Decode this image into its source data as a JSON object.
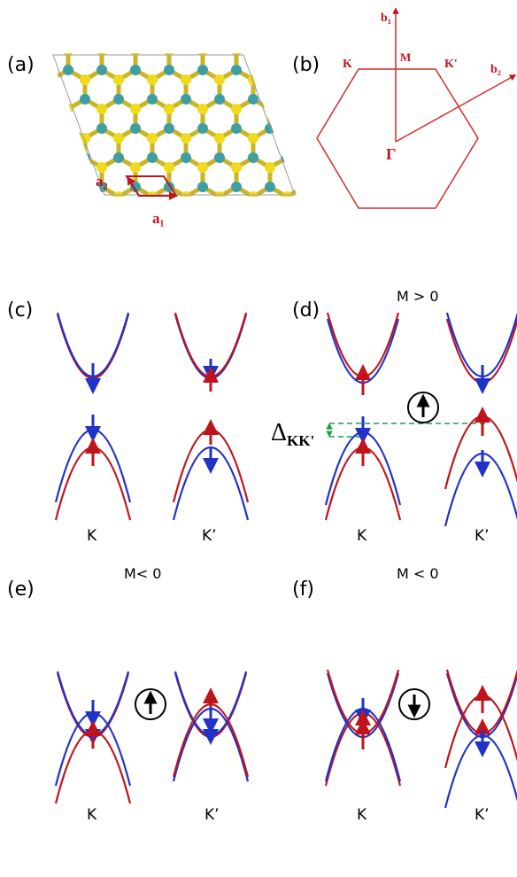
{
  "panel_a": {
    "label": "(a)",
    "vector_labels": [
      "a₂",
      "a₁"
    ]
  },
  "panel_b": {
    "label": "(b)",
    "vector_labels": [
      "b₁",
      "b₂"
    ],
    "points": [
      "K",
      "M",
      "K'",
      "Γ"
    ]
  },
  "panel_c": {
    "label": "(c)",
    "valleys": [
      "K",
      "K’"
    ]
  },
  "panel_d": {
    "label": "(d)",
    "condition": "M > 0",
    "gap_symbol": "Δ",
    "gap_subscript": "KK'",
    "valleys": [
      "K",
      "K’"
    ]
  },
  "panel_e": {
    "label": "(e)",
    "condition": "M< 0",
    "valleys": [
      "K",
      "K’"
    ]
  },
  "panel_f": {
    "label": "(f)",
    "condition": "M < 0",
    "valleys": [
      "K",
      "K’"
    ]
  }
}
